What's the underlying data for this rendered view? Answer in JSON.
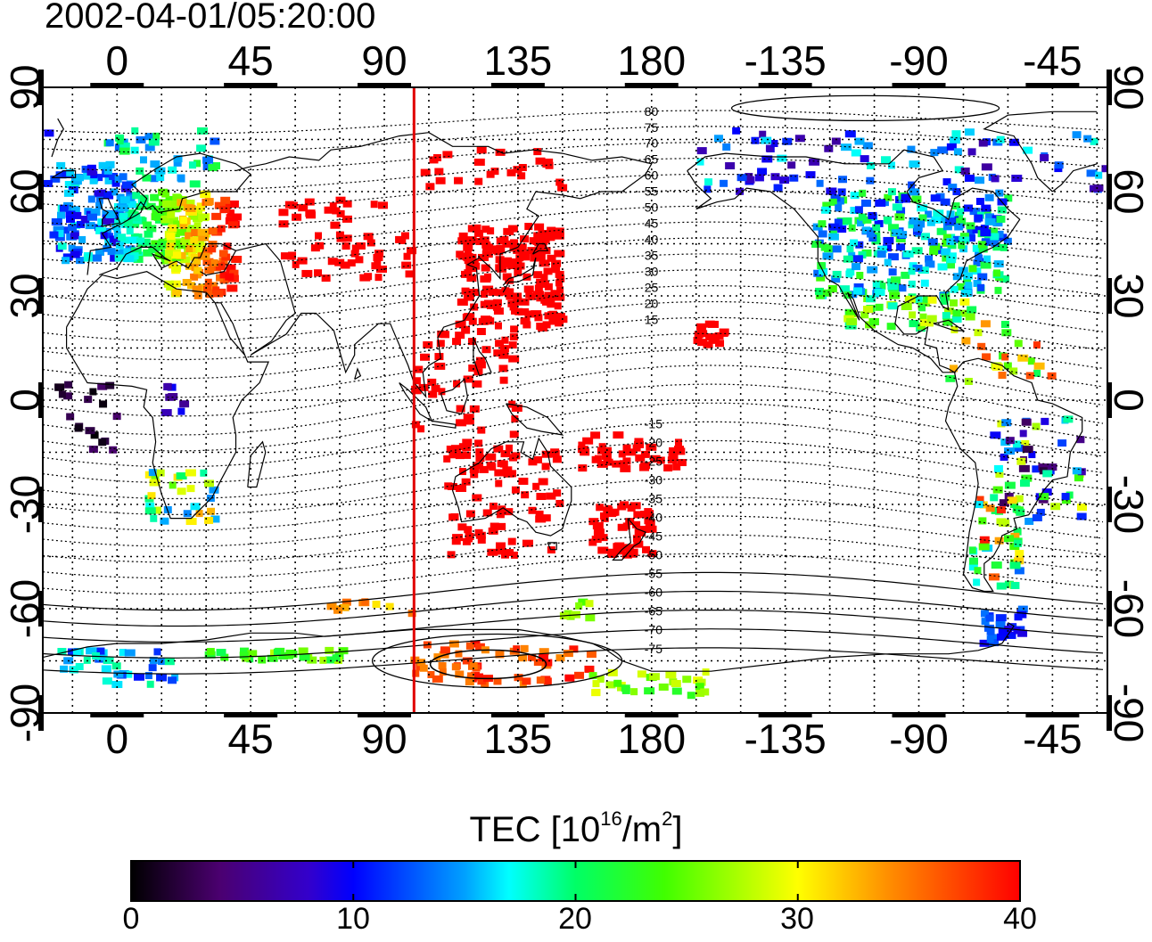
{
  "title": "2002-04-01/05:20:00",
  "map": {
    "lon_ticks": [
      0,
      45,
      90,
      135,
      180,
      -135,
      -90,
      -45
    ],
    "lat_ticks": [
      90,
      60,
      30,
      0,
      -30,
      -60,
      -90
    ],
    "subsolar_longitude": 100,
    "grid": true,
    "contour_labels": [
      80,
      75,
      70,
      65,
      60,
      55,
      50,
      45,
      40,
      35,
      30,
      25,
      20,
      15,
      -15,
      -20,
      -25,
      -30,
      -35,
      -40,
      -45,
      -50,
      -55,
      -60,
      -65,
      -70,
      -75
    ]
  },
  "colorbar": {
    "label_main": "TEC  [10",
    "label_exp": "16",
    "label_unit": "/m",
    "label_exp2": "2",
    "label_close": "]",
    "ticks": [
      "0",
      "10",
      "20",
      "30",
      "40"
    ],
    "min": 0,
    "max": 40,
    "colormap": "jet"
  },
  "colors": {
    "subsolar_line": "#e00000",
    "coast": "#000000",
    "grid": "#000000"
  }
}
